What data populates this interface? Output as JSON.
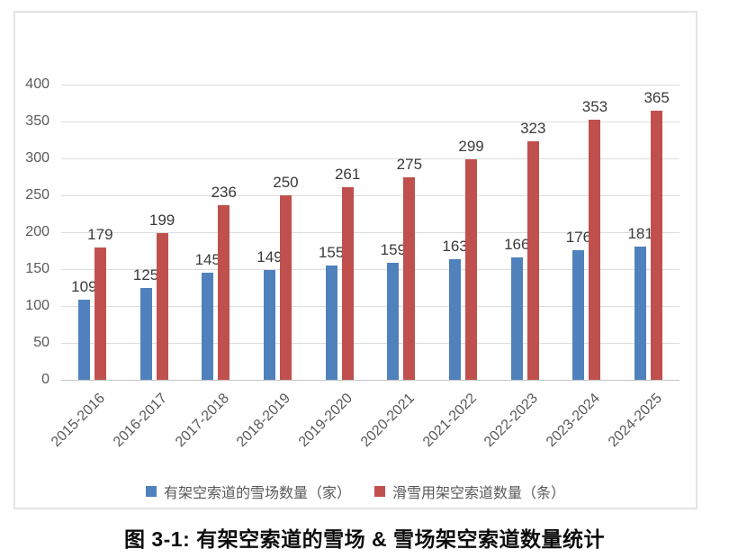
{
  "figure": {
    "caption": "图 3-1: 有架空索道的雪场 & 雪场架空索道数量统计"
  },
  "chart_data": {
    "type": "bar",
    "categories": [
      "2015-2016",
      "2016-2017",
      "2017-2018",
      "2018-2019",
      "2019-2020",
      "2020-2021",
      "2021-2022",
      "2022-2023",
      "2023-2024",
      "2024-2025"
    ],
    "series": [
      {
        "name": "有架空索道的雪场数量（家）",
        "color": "#4F81BD",
        "values": [
          109,
          125,
          145,
          149,
          155,
          159,
          163,
          166,
          176,
          181
        ]
      },
      {
        "name": "滑雪用架空索道数量（条）",
        "color": "#C0504D",
        "values": [
          179,
          199,
          236,
          250,
          261,
          275,
          299,
          323,
          353,
          365
        ]
      }
    ],
    "title": "",
    "xlabel": "",
    "ylabel": "",
    "ylim": [
      0,
      400
    ],
    "ytick_step": 50,
    "grid": true,
    "legend_position": "bottom",
    "x_label_rotation": -45,
    "data_labels": true,
    "colors": {
      "grid": "#dddddd",
      "baseline": "#c4c4c4",
      "tick_label": "#595959",
      "data_label": "#3a3a3a",
      "frame_border": "#e4e4e4"
    }
  }
}
